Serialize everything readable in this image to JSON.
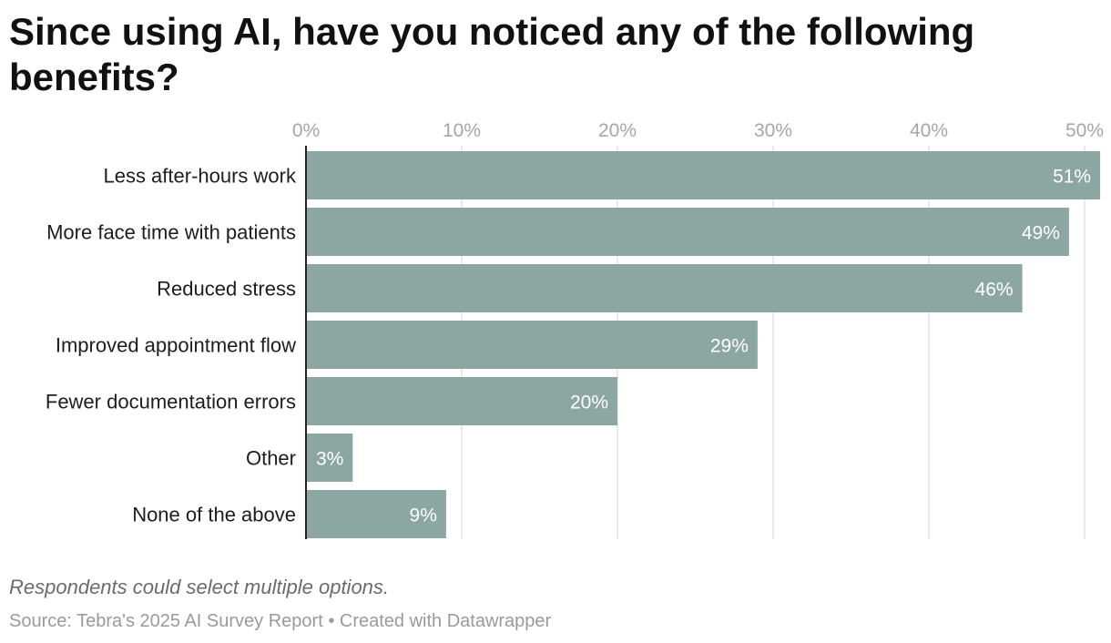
{
  "chart_data": {
    "type": "bar",
    "orientation": "horizontal",
    "title": "Since using AI, have you noticed any of the following benefits?",
    "categories": [
      "Less after-hours work",
      "More face time with patients",
      "Reduced stress",
      "Improved appointment flow",
      "Fewer documentation errors",
      "Other",
      "None of the above"
    ],
    "values": [
      51,
      49,
      46,
      29,
      20,
      3,
      9
    ],
    "value_labels": [
      "51%",
      "49%",
      "46%",
      "29%",
      "20%",
      "3%",
      "9%"
    ],
    "xticks": [
      0,
      10,
      20,
      30,
      40,
      50
    ],
    "xtick_labels": [
      "0%",
      "10%",
      "20%",
      "30%",
      "40%",
      "50%"
    ],
    "xlim": [
      0,
      51
    ],
    "grid": true,
    "bar_color": "#8ca7a1",
    "note": "Respondents could select multiple options.",
    "source": "Source: Tebra's 2025 AI Survey Report • Created with Datawrapper"
  }
}
